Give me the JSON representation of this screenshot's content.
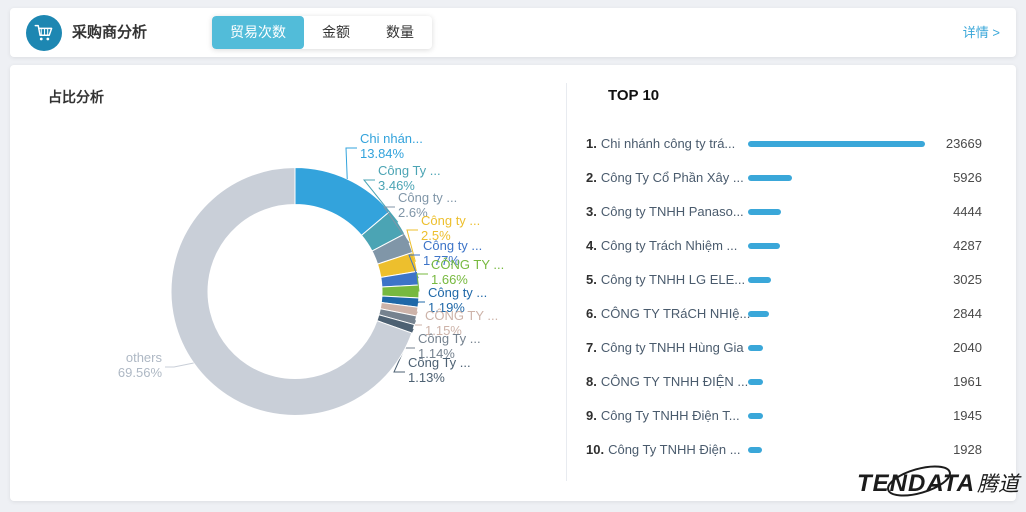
{
  "header": {
    "title": "采购商分析",
    "tabs": [
      {
        "label": "贸易次数",
        "active": true
      },
      {
        "label": "金额",
        "active": false
      },
      {
        "label": "数量",
        "active": false
      }
    ],
    "detail_link": "详情 >"
  },
  "watermark": {
    "brand": "TENDATA",
    "cjk": "腾道"
  },
  "colors": {
    "accent_tab": "#52bcd9",
    "link_blue": "#3aa7d9",
    "bar_blue": "#3aa7d9",
    "page_bg": "#eef0f4"
  },
  "chart_data": [
    {
      "type": "pie",
      "style": "donut",
      "title": "占比分析",
      "legend_position": "none",
      "slices": [
        {
          "label": "Chi nhán...",
          "value": 13.84,
          "pct_label": "13.84%",
          "color": "#33a3dc"
        },
        {
          "label": "Công Ty ...",
          "value": 3.46,
          "pct_label": "3.46%",
          "color": "#4ba4b4"
        },
        {
          "label": "Công ty ...",
          "value": 2.6,
          "pct_label": "2.6%",
          "color": "#8096a8"
        },
        {
          "label": "Công ty ...",
          "value": 2.5,
          "pct_label": "2.5%",
          "color": "#edbf2d"
        },
        {
          "label": "Công ty ...",
          "value": 1.77,
          "pct_label": "1.77%",
          "color": "#3d74c8"
        },
        {
          "label": "CÔNG TY ...",
          "value": 1.66,
          "pct_label": "1.66%",
          "color": "#77b93f"
        },
        {
          "label": "Công ty ...",
          "value": 1.19,
          "pct_label": "1.19%",
          "color": "#1f68a8"
        },
        {
          "label": "CÔNG TY ...",
          "value": 1.15,
          "pct_label": "1.15%",
          "color": "#cdb3a9"
        },
        {
          "label": "Công Ty ...",
          "value": 1.14,
          "pct_label": "1.14%",
          "color": "#75828f"
        },
        {
          "label": "Công Ty ...",
          "value": 1.13,
          "pct_label": "1.13%",
          "color": "#4d6173"
        },
        {
          "label": "others",
          "value": 69.56,
          "pct_label": "69.56%",
          "color": "#c9cfd8",
          "text_color": "#aeb8c4"
        }
      ]
    },
    {
      "type": "bar",
      "orientation": "horizontal",
      "title": "TOP 10",
      "bar_color": "#3aa7d9",
      "max_value": 23669,
      "items": [
        {
          "rank": "1.",
          "name": "Chi nhánh công ty trá...",
          "value": 23669
        },
        {
          "rank": "2.",
          "name": "Công Ty Cổ Phần Xây ...",
          "value": 5926
        },
        {
          "rank": "3.",
          "name": "Công ty TNHH Panaso...",
          "value": 4444
        },
        {
          "rank": "4.",
          "name": "Công ty Trách Nhiệm ...",
          "value": 4287
        },
        {
          "rank": "5.",
          "name": "Công ty TNHH LG ELE...",
          "value": 3025
        },
        {
          "rank": "6.",
          "name": "CÔNG TY TRáCH NHIệ...",
          "value": 2844
        },
        {
          "rank": "7.",
          "name": "Công ty TNHH Hùng Gia",
          "value": 2040
        },
        {
          "rank": "8.",
          "name": "CÔNG TY TNHH ĐIỆN ...",
          "value": 1961
        },
        {
          "rank": "9.",
          "name": "Công Ty TNHH Điện T...",
          "value": 1945
        },
        {
          "rank": "10.",
          "name": "Công Ty TNHH Điện ...",
          "value": 1928
        }
      ]
    }
  ]
}
